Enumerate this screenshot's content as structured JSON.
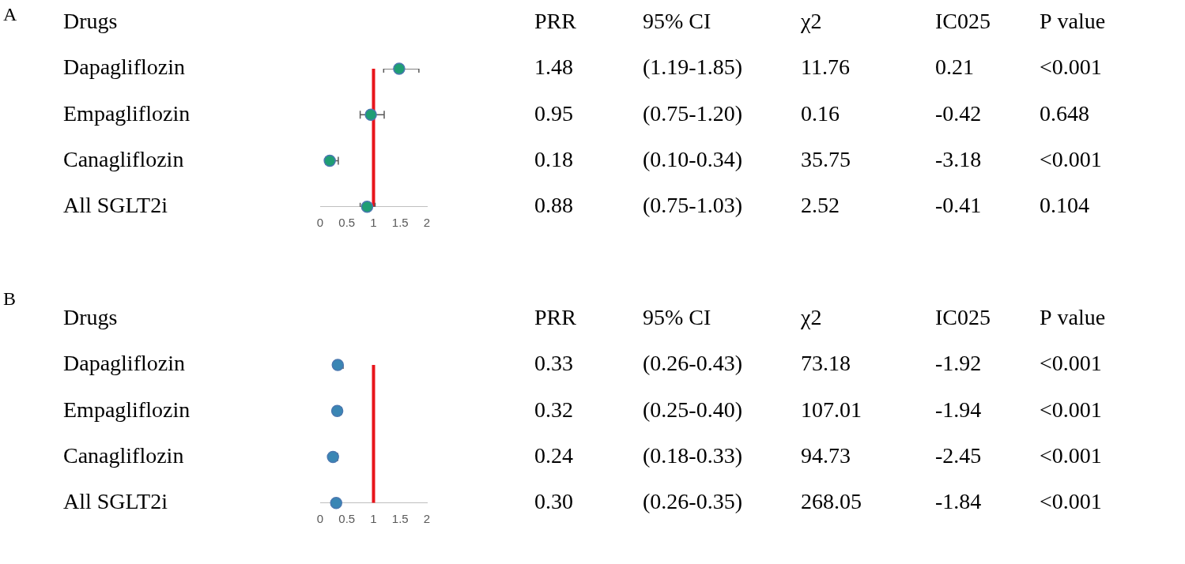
{
  "chart_data": [
    {
      "type": "forest",
      "panel": "A",
      "columns": [
        "Drugs",
        "PRR",
        "95% CI",
        "χ2",
        "IC025",
        "P value"
      ],
      "categories": [
        "Dapagliflozin",
        "Empagliflozin",
        "Canagliflozin",
        "All SGLT2i"
      ],
      "values": [
        1.48,
        0.95,
        0.18,
        0.88
      ],
      "value_labels": [
        "1.48",
        "0.95",
        "0.18",
        "0.88"
      ],
      "ci_low": [
        1.19,
        0.75,
        0.1,
        0.75
      ],
      "ci_high": [
        1.85,
        1.2,
        0.34,
        1.03
      ],
      "ci_labels": [
        "(1.19-1.85)",
        "(0.75-1.20)",
        "(0.10-0.34)",
        "(0.75-1.03)"
      ],
      "chi2": [
        11.76,
        0.16,
        35.75,
        2.52
      ],
      "ic025": [
        0.21,
        -0.42,
        -3.18,
        -0.41
      ],
      "p_values": [
        "<0.001",
        "0.648",
        "<0.001",
        "0.104"
      ],
      "reference": 1,
      "color": "#1f9e74",
      "xlim": [
        0,
        2
      ],
      "xticks": [
        0,
        0.5,
        1,
        1.5,
        2
      ],
      "grid": false
    },
    {
      "type": "forest",
      "panel": "B",
      "columns": [
        "Drugs",
        "PRR",
        "95% CI",
        "χ2",
        "IC025",
        "P value"
      ],
      "categories": [
        "Dapagliflozin",
        "Empagliflozin",
        "Canagliflozin",
        "All SGLT2i"
      ],
      "values": [
        0.33,
        0.32,
        0.24,
        0.3
      ],
      "value_labels": [
        "0.33",
        "0.32",
        "0.24",
        "0.30"
      ],
      "ci_low": [
        0.26,
        0.25,
        0.18,
        0.26
      ],
      "ci_high": [
        0.43,
        0.4,
        0.33,
        0.35
      ],
      "ci_labels": [
        "(0.26-0.43)",
        "(0.25-0.40)",
        "(0.18-0.33)",
        "(0.26-0.35)"
      ],
      "chi2": [
        73.18,
        107.01,
        94.73,
        268.05
      ],
      "ic025": [
        -1.92,
        -1.94,
        -2.45,
        -1.84
      ],
      "p_values": [
        "<0.001",
        "<0.001",
        "<0.001",
        "<0.001"
      ],
      "reference": 1,
      "color": "#3a86b4",
      "xlim": [
        0,
        2
      ],
      "xticks": [
        0,
        0.5,
        1,
        1.5,
        2
      ],
      "grid": false
    }
  ]
}
